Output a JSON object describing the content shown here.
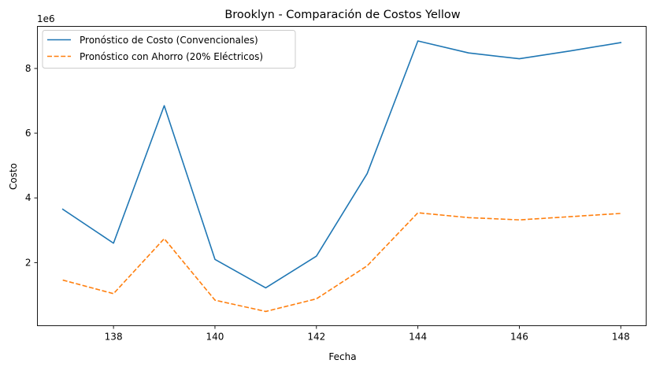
{
  "chart_data": {
    "type": "line",
    "title": "Brooklyn - Comparación de Costos Yellow",
    "xlabel": "Fecha",
    "ylabel": "Costo",
    "y_offset_text": "1e6",
    "x": [
      137,
      138,
      139,
      140,
      141,
      142,
      143,
      144,
      145,
      146,
      147,
      148
    ],
    "x_ticks": [
      138,
      140,
      142,
      144,
      146,
      148
    ],
    "x_tick_labels": [
      "138",
      "140",
      "142",
      "144",
      "146",
      "148"
    ],
    "y_ticks": [
      2000000,
      4000000,
      6000000,
      8000000
    ],
    "y_tick_labels": [
      "2",
      "4",
      "6",
      "8"
    ],
    "xlim": [
      136.5,
      148.5
    ],
    "ylim": [
      50000,
      9300000
    ],
    "grid": false,
    "legend_position": "upper-left",
    "series": [
      {
        "name": "Pronóstico de Costo (Convencionales)",
        "color": "#1f77b4",
        "style": "solid",
        "values": [
          3650000,
          2600000,
          6850000,
          2100000,
          1220000,
          2200000,
          4750000,
          8850000,
          8480000,
          8300000,
          8540000,
          8800000
        ]
      },
      {
        "name": "Pronóstico con Ahorro (20% Eléctricos)",
        "color": "#ff7f0e",
        "style": "dashed",
        "values": [
          1460000,
          1040000,
          2740000,
          840000,
          490000,
          880000,
          1900000,
          3540000,
          3390000,
          3320000,
          3420000,
          3520000
        ]
      }
    ]
  }
}
